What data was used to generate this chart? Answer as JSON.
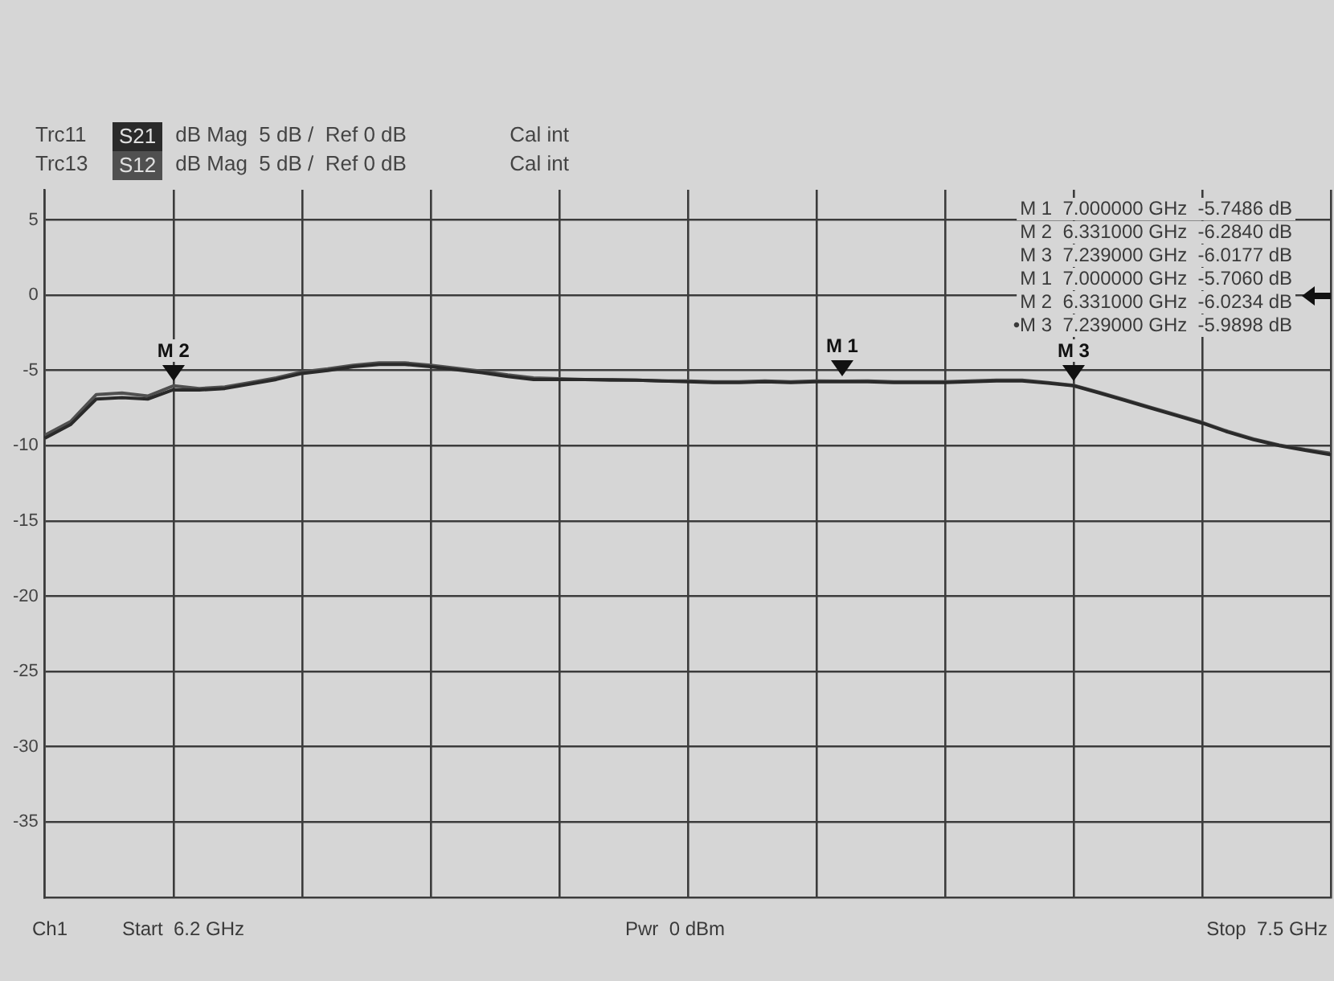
{
  "chart_data": {
    "type": "line",
    "categories": [
      null,
      null,
      null,
      null,
      null,
      null,
      null,
      null,
      null,
      null,
      null,
      null,
      null,
      null,
      null,
      null,
      null,
      null,
      null,
      null,
      null,
      null,
      null,
      null,
      null,
      null,
      null,
      null,
      null,
      null,
      null,
      null,
      null,
      null,
      null,
      null,
      null,
      null,
      null,
      null,
      null,
      null,
      null,
      null,
      null,
      null,
      null,
      null,
      null,
      null,
      null
    ],
    "series": [
      {
        "name": "S21",
        "color": "#2a2a2a",
        "values": [
          -9.5,
          -8.6,
          -6.9,
          -6.8,
          -6.9,
          -6.284,
          -6.3,
          -6.2,
          -5.9,
          -5.6,
          -5.2,
          -5.0,
          -4.75,
          -4.6,
          -4.6,
          -4.75,
          -4.95,
          -5.15,
          -5.4,
          -5.6,
          -5.6,
          -5.6,
          -5.65,
          -5.65,
          -5.7,
          -5.75,
          -5.8,
          -5.8,
          -5.75,
          -5.8,
          -5.75,
          -5.7486,
          -5.75,
          -5.8,
          -5.8,
          -5.8,
          -5.75,
          -5.7,
          -5.7,
          -5.85,
          -6.0177,
          -6.5,
          -7.0,
          -7.5,
          -8.0,
          -8.5,
          -9.1,
          -9.6,
          -10.0,
          -10.3,
          -10.6
        ]
      },
      {
        "name": "S12",
        "color": "#505050",
        "values": [
          -9.3,
          -8.4,
          -6.6,
          -6.5,
          -6.7,
          -6.0234,
          -6.2,
          -6.1,
          -5.8,
          -5.5,
          -5.1,
          -4.9,
          -4.65,
          -4.5,
          -4.5,
          -4.65,
          -4.85,
          -5.05,
          -5.3,
          -5.5,
          -5.55,
          -5.6,
          -5.6,
          -5.65,
          -5.7,
          -5.7,
          -5.75,
          -5.75,
          -5.7,
          -5.75,
          -5.7,
          -5.706,
          -5.7,
          -5.75,
          -5.75,
          -5.75,
          -5.7,
          -5.65,
          -5.65,
          -5.8,
          -5.9898,
          -6.45,
          -6.95,
          -7.45,
          -7.95,
          -8.45,
          -9.05,
          -9.55,
          -9.95,
          -10.25,
          -10.5
        ]
      }
    ],
    "ylim": [
      -40,
      7
    ],
    "yticks": [
      -35,
      -30,
      -25,
      -20,
      -15,
      -10,
      -5,
      0,
      5
    ],
    "tick_labels": "y",
    "grid": true,
    "legend": "top left",
    "marker": "none",
    "line_style": "solid",
    "annotations": [
      "Trc11",
      "dB Mag  5 dB /  Ref 0 dB",
      "Cal int",
      "Trc13",
      "dB Mag  5 dB /  Ref 0 dB",
      "Cal int",
      "M 1  7.000000 GHz  -5.7486 dB",
      "M 2  6.331000 GHz  -6.2840 dB",
      "M 3  7.239000 GHz  -6.0177 dB",
      "M 1  7.000000 GHz  -5.7060 dB",
      "M 2  6.331000 GHz  -6.0234 dB",
      "•M 3  7.239000 GHz  -5.9898 dB",
      "Ch1",
      "Start  6.2 GHz",
      "Pwr  0 dBm",
      "Stop  7.5 GHz",
      {
        "text": "M 1",
        "y": -5.7486
      },
      {
        "text": "M 2",
        "y": -6.284
      },
      {
        "text": "M 3",
        "y": -6.0177
      }
    ]
  }
}
